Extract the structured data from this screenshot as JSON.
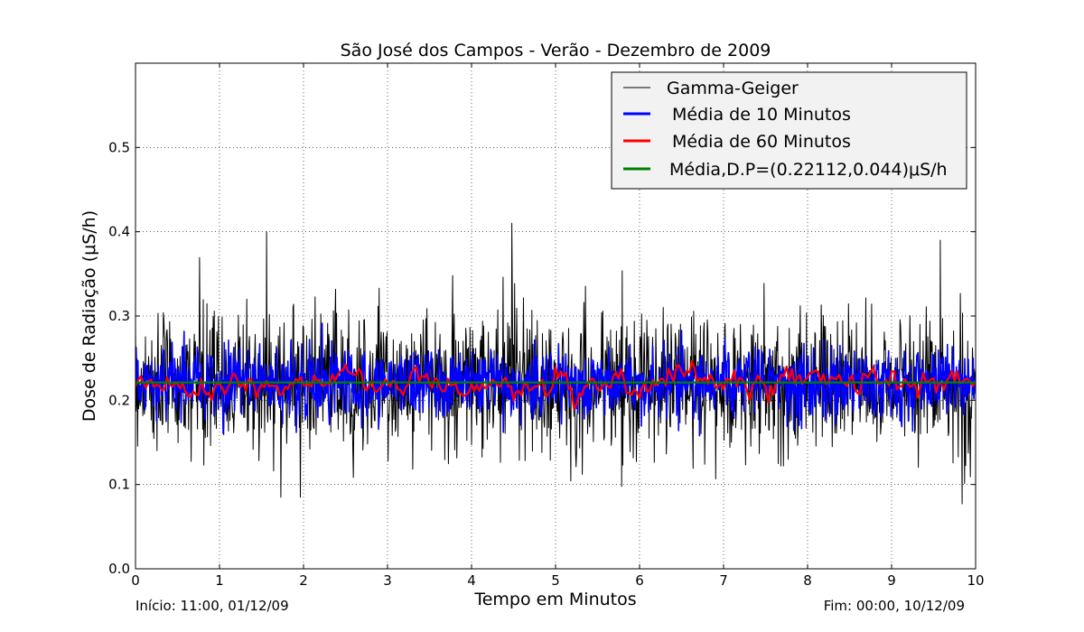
{
  "chart_data": {
    "type": "line",
    "title": "São José dos Campos - Verão - Dezembro de 2009",
    "xlabel": "Tempo em Minutos",
    "ylabel": "Dose de Radiação (μS/h)",
    "xlim": [
      0,
      10
    ],
    "ylim": [
      0,
      0.6
    ],
    "x_ticks": [
      0,
      1,
      2,
      3,
      4,
      5,
      6,
      7,
      8,
      9,
      10
    ],
    "x_tick_labels": [
      "0",
      "1",
      "2",
      "3",
      "4",
      "5",
      "6",
      "7",
      "8",
      "9",
      "10"
    ],
    "y_ticks": [
      0.0,
      0.1,
      0.2,
      0.3,
      0.4,
      0.5
    ],
    "y_tick_labels": [
      "0.0",
      "0.1",
      "0.2",
      "0.3",
      "0.4",
      "0.5"
    ],
    "grid": true,
    "legend_position": "top-right",
    "annotations": {
      "start": "Início: 11:00, 01/12/09",
      "end": "Fim: 00:00, 10/12/09"
    },
    "series": [
      {
        "name": "Gamma-Geiger",
        "color": "#000000",
        "style": "noisy",
        "mean": 0.22112,
        "sd": 0.044,
        "min": 0.085,
        "max": 0.41
      },
      {
        "name": " Média de 10 Minutos",
        "color": "#0000ff",
        "style": "noisy",
        "mean": 0.2211,
        "sd": 0.022
      },
      {
        "name": " Média de 60 Minutos",
        "color": "#ff0000",
        "style": "smooth",
        "mean": 0.2211,
        "sd": 0.009
      },
      {
        "name": "Média,D.P=(0.22112,0.044)μS/h",
        "color": "#008000",
        "style": "constant",
        "value": 0.22112
      }
    ]
  }
}
